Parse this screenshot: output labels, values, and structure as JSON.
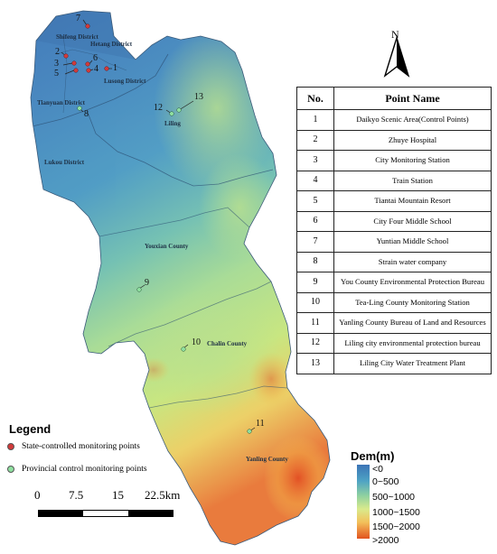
{
  "north_label": "N",
  "table": {
    "header_no": "No.",
    "header_name": "Point Name",
    "rows": [
      {
        "no": "1",
        "name": "Daikyo Scenic Area(Control Points)"
      },
      {
        "no": "2",
        "name": "Zhuye Hospital"
      },
      {
        "no": "3",
        "name": "City Monitoring Station"
      },
      {
        "no": "4",
        "name": "Train Station"
      },
      {
        "no": "5",
        "name": "Tiantai Mountain Resort"
      },
      {
        "no": "6",
        "name": "City Four Middle School"
      },
      {
        "no": "7",
        "name": "Yuntian Middle School"
      },
      {
        "no": "8",
        "name": "Strain water company"
      },
      {
        "no": "9",
        "name": "You County Environmental Protection Bureau"
      },
      {
        "no": "10",
        "name": "Tea-Ling County Monitoring Station"
      },
      {
        "no": "11",
        "name": "Yanling County Bureau of Land and Resources"
      },
      {
        "no": "12",
        "name": "Liling city environmental protection bureau"
      },
      {
        "no": "13",
        "name": "Liling City Water Treatment Plant"
      }
    ]
  },
  "districts": {
    "shifeng": "Shifeng District",
    "hetang": "Hetang District",
    "lusong": "Lusong District",
    "tianyuan": "Tianyuan District",
    "lukou": "Lukou District",
    "liling": "Liling",
    "youxian": "Youxian County",
    "chalin": "Chalin County",
    "yanling": "Yanling County"
  },
  "map_points": {
    "p1": "1",
    "p2": "2",
    "p3": "3",
    "p4": "4",
    "p5": "5",
    "p6": "6",
    "p7": "7",
    "p8": "8",
    "p9": "9",
    "p10": "10",
    "p11": "11",
    "p12": "12",
    "p13": "13"
  },
  "legend": {
    "title": "Legend",
    "state": "State-controlled monitoring points",
    "provincial": "Provincial control monitoring points",
    "state_color": "#d23a3a",
    "provincial_color": "#8fe0a0"
  },
  "scale": {
    "labels": [
      "0",
      "7.5",
      "15",
      "22.5km"
    ]
  },
  "dem": {
    "title": "Dem(m)",
    "classes": [
      "<0",
      "0~500",
      "500~1000",
      "1000~1500",
      "1500~2000",
      ">2000"
    ]
  }
}
